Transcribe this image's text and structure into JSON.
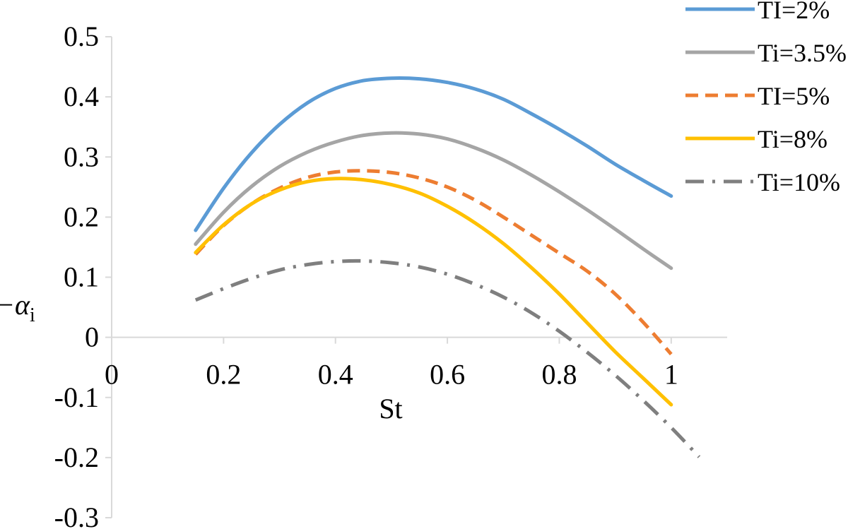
{
  "chart_data": {
    "type": "line",
    "xlabel": "St",
    "ylabel": "−α",
    "ylabel_sub": "i",
    "xlim": [
      0,
      1.1
    ],
    "ylim": [
      -0.3,
      0.5
    ],
    "xticks": [
      0,
      0.2,
      0.4,
      0.6,
      0.8,
      1
    ],
    "xtick_labels": [
      "0",
      "0.2",
      "0.4",
      "0.6",
      "0.8",
      "1"
    ],
    "yticks": [
      0.5,
      0.4,
      0.3,
      0.2,
      0.1,
      0,
      -0.1,
      -0.2,
      -0.3
    ],
    "ytick_labels": [
      "0.5",
      "0.4",
      "0.3",
      "0.2",
      "0.1",
      "0",
      "-0.1",
      "-0.2",
      "-0.3"
    ],
    "grid": false,
    "legend_position": "top-right",
    "series": [
      {
        "name": "TI=2%",
        "color": "#5B9BD5",
        "dash": "solid",
        "x": [
          0.15,
          0.2,
          0.25,
          0.3,
          0.35,
          0.4,
          0.45,
          0.5,
          0.55,
          0.6,
          0.65,
          0.7,
          0.75,
          0.8,
          0.85,
          0.9,
          0.95,
          1.0
        ],
        "y": [
          0.178,
          0.248,
          0.307,
          0.354,
          0.39,
          0.414,
          0.427,
          0.431,
          0.43,
          0.424,
          0.413,
          0.396,
          0.372,
          0.346,
          0.318,
          0.288,
          0.261,
          0.235
        ]
      },
      {
        "name": "Ti=3.5%",
        "color": "#A5A5A5",
        "dash": "solid",
        "x": [
          0.15,
          0.2,
          0.25,
          0.3,
          0.35,
          0.4,
          0.45,
          0.5,
          0.55,
          0.6,
          0.65,
          0.7,
          0.75,
          0.8,
          0.85,
          0.9,
          0.95,
          1.0
        ],
        "y": [
          0.155,
          0.208,
          0.251,
          0.284,
          0.308,
          0.325,
          0.336,
          0.34,
          0.338,
          0.33,
          0.315,
          0.295,
          0.27,
          0.242,
          0.212,
          0.18,
          0.147,
          0.115
        ]
      },
      {
        "name": "TI=5%",
        "color": "#ED7D31",
        "dash": "dashed",
        "x": [
          0.15,
          0.2,
          0.25,
          0.3,
          0.35,
          0.4,
          0.45,
          0.5,
          0.55,
          0.6,
          0.65,
          0.7,
          0.75,
          0.8,
          0.85,
          0.9,
          0.95,
          1.0
        ],
        "y": [
          0.138,
          0.186,
          0.222,
          0.248,
          0.266,
          0.275,
          0.277,
          0.274,
          0.265,
          0.25,
          0.228,
          0.2,
          0.17,
          0.14,
          0.11,
          0.072,
          0.025,
          -0.028
        ]
      },
      {
        "name": "Ti=8%",
        "color": "#FFC000",
        "dash": "solid",
        "x": [
          0.15,
          0.2,
          0.25,
          0.3,
          0.35,
          0.4,
          0.45,
          0.5,
          0.55,
          0.6,
          0.65,
          0.7,
          0.75,
          0.8,
          0.85,
          0.9,
          0.95,
          1.0
        ],
        "y": [
          0.141,
          0.187,
          0.222,
          0.245,
          0.259,
          0.264,
          0.262,
          0.254,
          0.24,
          0.218,
          0.19,
          0.156,
          0.116,
          0.072,
          0.024,
          -0.024,
          -0.068,
          -0.112
        ]
      },
      {
        "name": "Ti=10%",
        "color": "#7F7F7F",
        "dash": "dash-dot",
        "x": [
          0.15,
          0.2,
          0.25,
          0.3,
          0.35,
          0.4,
          0.45,
          0.5,
          0.55,
          0.6,
          0.65,
          0.7,
          0.75,
          0.8,
          0.85,
          0.9,
          0.95,
          1.0,
          1.05
        ],
        "y": [
          0.062,
          0.081,
          0.098,
          0.112,
          0.121,
          0.126,
          0.127,
          0.124,
          0.117,
          0.105,
          0.088,
          0.067,
          0.041,
          0.01,
          -0.025,
          -0.063,
          -0.105,
          -0.15,
          -0.199
        ]
      }
    ]
  }
}
